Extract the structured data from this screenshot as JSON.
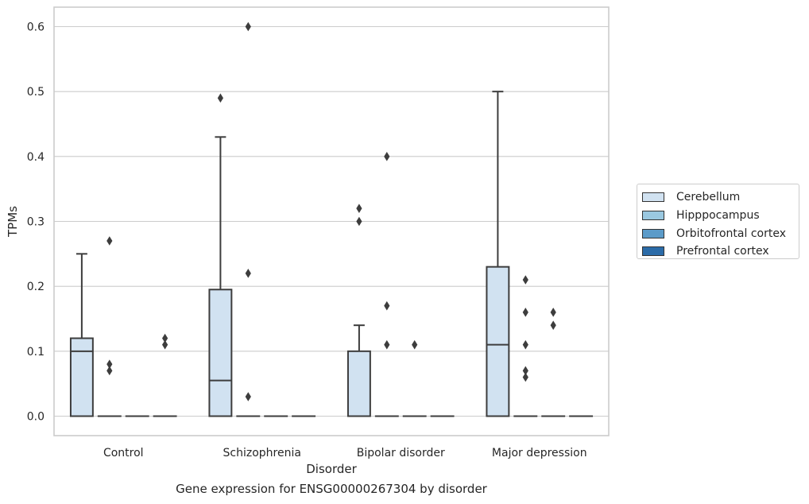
{
  "caption": "Gene expression for ENSG00000267304 by disorder",
  "chart_data": {
    "type": "box",
    "title": "",
    "xlabel": "Disorder",
    "ylabel": "TPMs",
    "ylim": [
      -0.03,
      0.63
    ],
    "yticks": [
      0.0,
      0.1,
      0.2,
      0.3,
      0.4,
      0.5,
      0.6
    ],
    "ytick_labels": [
      "0.0",
      "0.1",
      "0.2",
      "0.3",
      "0.4",
      "0.5",
      "0.6"
    ],
    "grid": true,
    "legend_position": "right",
    "categories": [
      "Control",
      "Schizophrenia",
      "Bipolar disorder",
      "Major depression"
    ],
    "series": [
      {
        "name": "Cerebellum",
        "color": "#d1e2f1",
        "boxes": [
          {
            "q1": 0.0,
            "median": 0.1,
            "q3": 0.12,
            "whisker_low": 0.0,
            "whisker_high": 0.25,
            "outliers": []
          },
          {
            "q1": 0.0,
            "median": 0.055,
            "q3": 0.195,
            "whisker_low": 0.0,
            "whisker_high": 0.43,
            "outliers": [
              0.49
            ]
          },
          {
            "q1": 0.0,
            "median": 0.0,
            "q3": 0.1,
            "whisker_low": 0.0,
            "whisker_high": 0.14,
            "outliers": [
              0.3,
              0.32
            ]
          },
          {
            "q1": 0.0,
            "median": 0.11,
            "q3": 0.23,
            "whisker_low": 0.0,
            "whisker_high": 0.5,
            "outliers": []
          }
        ]
      },
      {
        "name": "Hipppocampus",
        "color": "#9ac8e0",
        "boxes": [
          {
            "q1": 0.0,
            "median": 0.0,
            "q3": 0.0,
            "whisker_low": 0.0,
            "whisker_high": 0.0,
            "outliers": [
              0.07,
              0.08,
              0.27
            ]
          },
          {
            "q1": 0.0,
            "median": 0.0,
            "q3": 0.0,
            "whisker_low": 0.0,
            "whisker_high": 0.0,
            "outliers": [
              0.03,
              0.22,
              0.6
            ]
          },
          {
            "q1": 0.0,
            "median": 0.0,
            "q3": 0.0,
            "whisker_low": 0.0,
            "whisker_high": 0.0,
            "outliers": [
              0.11,
              0.17,
              0.4
            ]
          },
          {
            "q1": 0.0,
            "median": 0.0,
            "q3": 0.0,
            "whisker_low": 0.0,
            "whisker_high": 0.0,
            "outliers": [
              0.06,
              0.07,
              0.11,
              0.16,
              0.21
            ]
          }
        ]
      },
      {
        "name": "Orbitofrontal cortex",
        "color": "#5b9bc9",
        "boxes": [
          {
            "q1": 0.0,
            "median": 0.0,
            "q3": 0.0,
            "whisker_low": 0.0,
            "whisker_high": 0.0,
            "outliers": []
          },
          {
            "q1": 0.0,
            "median": 0.0,
            "q3": 0.0,
            "whisker_low": 0.0,
            "whisker_high": 0.0,
            "outliers": []
          },
          {
            "q1": 0.0,
            "median": 0.0,
            "q3": 0.0,
            "whisker_low": 0.0,
            "whisker_high": 0.0,
            "outliers": [
              0.11
            ]
          },
          {
            "q1": 0.0,
            "median": 0.0,
            "q3": 0.0,
            "whisker_low": 0.0,
            "whisker_high": 0.0,
            "outliers": [
              0.14,
              0.16
            ]
          }
        ]
      },
      {
        "name": "Prefrontal cortex",
        "color": "#2b6ba8",
        "boxes": [
          {
            "q1": 0.0,
            "median": 0.0,
            "q3": 0.0,
            "whisker_low": 0.0,
            "whisker_high": 0.0,
            "outliers": [
              0.11,
              0.12
            ]
          },
          {
            "q1": 0.0,
            "median": 0.0,
            "q3": 0.0,
            "whisker_low": 0.0,
            "whisker_high": 0.0,
            "outliers": []
          },
          {
            "q1": 0.0,
            "median": 0.0,
            "q3": 0.0,
            "whisker_low": 0.0,
            "whisker_high": 0.0,
            "outliers": []
          },
          {
            "q1": 0.0,
            "median": 0.0,
            "q3": 0.0,
            "whisker_low": 0.0,
            "whisker_high": 0.0,
            "outliers": []
          }
        ]
      }
    ]
  }
}
